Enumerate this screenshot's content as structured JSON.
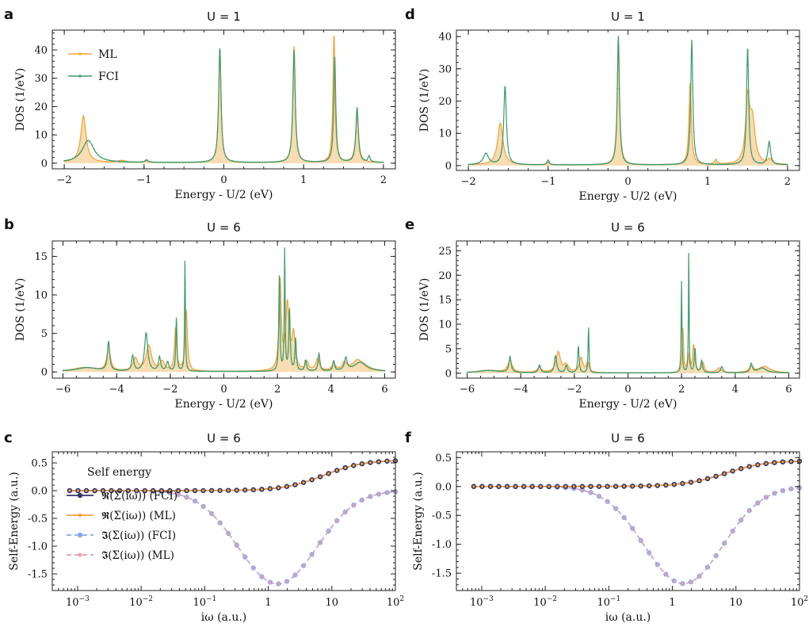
{
  "figure": {
    "legend_title": "Self energy",
    "legend_dos": [
      "ML",
      "FCI"
    ],
    "legend_self": [
      "𝕽(Σ(iω)) (FCI)",
      "𝕽(Σ(iω)) (ML)",
      "𝕴(Σ(iω)) (FCI)",
      "𝕴(Σ(iω)) (ML)"
    ]
  },
  "colors": {
    "ml": "#f3a033",
    "ml_fill": "#f8dcb2",
    "fci": "#3d9a6a",
    "re_fci": "#33336e",
    "im_fci": "#87a8ee",
    "im_ml": "#ee9aa6",
    "axis": "#222222"
  },
  "chart_data": [
    {
      "panel": "a",
      "type": "line",
      "title": "U = 1",
      "xlabel": "Energy - U/2 (eV)",
      "ylabel": "DOS (1/eV)",
      "xlim": [
        -2.15,
        2.15
      ],
      "ylim": [
        -2,
        47
      ],
      "xticks": [
        -2,
        -1,
        0,
        1,
        2
      ],
      "xticklabels": [
        "−2",
        "−1",
        "0",
        "1",
        "2"
      ],
      "yticks": [
        0,
        10,
        20,
        30,
        40
      ],
      "yticklabels": [
        "0",
        "10",
        "20",
        "30",
        "40"
      ],
      "legend": true,
      "series": [
        {
          "name": "ML",
          "peaks": [
            [
              -1.76,
              16.5,
              0.04
            ],
            [
              -1.28,
              0.7,
              0.06
            ],
            [
              -0.97,
              0.5,
              0.03
            ],
            [
              -0.05,
              40,
              0.018
            ],
            [
              0.88,
              41,
              0.018
            ],
            [
              1.38,
              45.5,
              0.015
            ],
            [
              1.67,
              17,
              0.022
            ]
          ],
          "baseline": 0.2
        },
        {
          "name": "FCI",
          "peaks": [
            [
              -1.7,
              7.8,
              0.09
            ],
            [
              -0.97,
              0.9,
              0.02
            ],
            [
              -0.05,
              40.5,
              0.018
            ],
            [
              0.88,
              39.5,
              0.018
            ],
            [
              1.39,
              37.5,
              0.015
            ],
            [
              1.67,
              19.5,
              0.018
            ],
            [
              1.82,
              2.2,
              0.015
            ]
          ],
          "baseline": 0.2
        }
      ]
    },
    {
      "panel": "b",
      "type": "line",
      "title": "U = 6",
      "xlabel": "Energy - U/2 (eV)",
      "ylabel": "DOS (1/eV)",
      "xlim": [
        -6.4,
        6.4
      ],
      "ylim": [
        -0.8,
        17
      ],
      "xticks": [
        -6,
        -4,
        -2,
        0,
        2,
        4,
        6
      ],
      "xticklabels": [
        "−6",
        "−4",
        "−2",
        "0",
        "2",
        "4",
        "6"
      ],
      "yticks": [
        0,
        5,
        10,
        15
      ],
      "yticklabels": [
        "0",
        "5",
        "10",
        "15"
      ],
      "legend": false,
      "series": [
        {
          "name": "ML",
          "peaks": [
            [
              -5.2,
              0.5,
              0.5
            ],
            [
              -4.3,
              3.0,
              0.08
            ],
            [
              -3.3,
              1.6,
              0.1
            ],
            [
              -2.8,
              3.3,
              0.12
            ],
            [
              -2.3,
              1.2,
              0.1
            ],
            [
              -1.8,
              5.5,
              0.05
            ],
            [
              -1.4,
              7.8,
              0.05
            ],
            [
              2.1,
              11.5,
              0.05
            ],
            [
              2.37,
              8.5,
              0.08
            ],
            [
              2.6,
              4.5,
              0.07
            ],
            [
              3.1,
              1.1,
              0.07
            ],
            [
              3.5,
              1.6,
              0.08
            ],
            [
              4.1,
              0.9,
              0.08
            ],
            [
              4.5,
              1.0,
              0.1
            ],
            [
              5.0,
              1.5,
              0.25
            ]
          ],
          "baseline": 0.05
        },
        {
          "name": "FCI",
          "peaks": [
            [
              -5.1,
              0.5,
              0.5
            ],
            [
              -4.3,
              3.8,
              0.05
            ],
            [
              -3.4,
              2.0,
              0.05
            ],
            [
              -2.9,
              5.0,
              0.07
            ],
            [
              -2.4,
              1.8,
              0.05
            ],
            [
              -2.1,
              1.2,
              0.05
            ],
            [
              -1.77,
              7.0,
              0.025
            ],
            [
              -1.45,
              14.8,
              0.018
            ],
            [
              2.07,
              12.5,
              0.025
            ],
            [
              2.27,
              16.2,
              0.018
            ],
            [
              2.45,
              8.0,
              0.03
            ],
            [
              2.68,
              4.2,
              0.03
            ],
            [
              3.05,
              1.4,
              0.04
            ],
            [
              3.55,
              2.3,
              0.04
            ],
            [
              4.1,
              1.3,
              0.04
            ],
            [
              4.55,
              1.6,
              0.06
            ],
            [
              5.1,
              1.2,
              0.3
            ]
          ],
          "baseline": 0.05
        }
      ]
    },
    {
      "panel": "c",
      "type": "line",
      "title": "U = 6",
      "xlabel": "iω (a.u.)",
      "ylabel": "Self-Energy (a.u.)",
      "xscale": "log",
      "xlim": [
        0.0004,
        100
      ],
      "ylim": [
        -1.8,
        0.7
      ],
      "xticks": [
        0.001,
        0.01,
        0.1,
        1,
        10,
        100
      ],
      "xticklabels": [
        [
          "10",
          "−3"
        ],
        [
          "10",
          "−2"
        ],
        [
          "10",
          "−1"
        ],
        [
          "1",
          ""
        ],
        [
          "10",
          ""
        ],
        [
          "10",
          "2"
        ]
      ],
      "yticks": [
        0.5,
        0,
        -0.5,
        -1,
        -1.5
      ],
      "yticklabels": [
        "0.5",
        "0.0",
        "-0.5",
        "-1.0",
        "-1.5"
      ],
      "legend": true,
      "re_params": {
        "amp": 0.58,
        "center": 0.9,
        "width": 0.32
      },
      "im_params": {
        "amp": 1.68,
        "peak": 1.4,
        "decade_width": 0.62
      },
      "sample_points": 40
    },
    {
      "panel": "d",
      "type": "line",
      "title": "U = 1",
      "xlabel": "Energy - U/2 (eV)",
      "ylabel": "DOS (1/eV)",
      "xlim": [
        -2.15,
        2.15
      ],
      "ylim": [
        -1.5,
        42
      ],
      "xticks": [
        -2,
        -1,
        0,
        1,
        2
      ],
      "xticklabels": [
        "−2",
        "−1",
        "0",
        "1",
        "2"
      ],
      "yticks": [
        0,
        10,
        20,
        30,
        40
      ],
      "yticklabels": [
        "0",
        "10",
        "20",
        "30",
        "40"
      ],
      "legend": false,
      "series": [
        {
          "name": "ML",
          "peaks": [
            [
              -1.6,
              13,
              0.04
            ],
            [
              -1.0,
              0.7,
              0.02
            ],
            [
              -0.12,
              37,
              0.018
            ],
            [
              0.78,
              25.5,
              0.018
            ],
            [
              1.1,
              1.5,
              0.02
            ],
            [
              1.5,
              19,
              0.03
            ],
            [
              1.56,
              13,
              0.04
            ],
            [
              1.78,
              1.5,
              0.03
            ]
          ],
          "baseline": 0.2
        },
        {
          "name": "FCI",
          "peaks": [
            [
              -1.78,
              3.5,
              0.04
            ],
            [
              -1.54,
              24.5,
              0.02
            ],
            [
              -1.0,
              1.5,
              0.015
            ],
            [
              -0.12,
              40,
              0.016
            ],
            [
              0.8,
              38.5,
              0.016
            ],
            [
              1.5,
              36.5,
              0.016
            ],
            [
              1.77,
              7.2,
              0.02
            ]
          ],
          "baseline": 0.2
        }
      ]
    },
    {
      "panel": "e",
      "type": "line",
      "title": "U = 6",
      "xlabel": "Energy - U/2 (eV)",
      "ylabel": "DOS (1/eV)",
      "xlim": [
        -6.4,
        6.4
      ],
      "ylim": [
        -1,
        27
      ],
      "xticks": [
        -6,
        -4,
        -2,
        0,
        2,
        4,
        6
      ],
      "xticklabels": [
        "−6",
        "−4",
        "−2",
        "0",
        "2",
        "4",
        "6"
      ],
      "yticks": [
        0,
        5,
        10,
        15,
        20,
        25
      ],
      "yticklabels": [
        "0",
        "5",
        "10",
        "15",
        "20",
        "25"
      ],
      "legend": false,
      "series": [
        {
          "name": "ML",
          "peaks": [
            [
              -5.2,
              0.5,
              0.5
            ],
            [
              -4.4,
              2.4,
              0.1
            ],
            [
              -3.3,
              1.0,
              0.1
            ],
            [
              -2.6,
              4.2,
              0.1
            ],
            [
              -2.3,
              1.5,
              0.1
            ],
            [
              -1.75,
              3.0,
              0.08
            ],
            [
              -1.5,
              2.0,
              0.06
            ],
            [
              2.05,
              9.0,
              0.03
            ],
            [
              2.25,
              3.5,
              0.04
            ],
            [
              2.45,
              5.5,
              0.05
            ],
            [
              2.8,
              2.0,
              0.06
            ],
            [
              3.4,
              1.0,
              0.1
            ],
            [
              4.6,
              1.2,
              0.1
            ],
            [
              5.1,
              1.3,
              0.25
            ]
          ],
          "baseline": 0.05
        },
        {
          "name": "FCI",
          "peaks": [
            [
              -5.2,
              0.5,
              0.5
            ],
            [
              -4.4,
              3.2,
              0.05
            ],
            [
              -3.3,
              1.6,
              0.05
            ],
            [
              -2.7,
              3.5,
              0.05
            ],
            [
              -2.3,
              1.5,
              0.05
            ],
            [
              -1.85,
              5.5,
              0.03
            ],
            [
              -1.47,
              9.5,
              0.02
            ],
            [
              2.0,
              18.5,
              0.018
            ],
            [
              2.27,
              25.5,
              0.015
            ],
            [
              2.5,
              5.0,
              0.03
            ],
            [
              2.75,
              2.5,
              0.04
            ],
            [
              3.5,
              1.3,
              0.05
            ],
            [
              4.6,
              1.8,
              0.05
            ],
            [
              5.0,
              1.0,
              0.2
            ]
          ],
          "baseline": 0.05
        }
      ]
    },
    {
      "panel": "f",
      "type": "line",
      "title": "U = 6",
      "xlabel": "iω (a.u.)",
      "ylabel": "Self-Energy (a.u.)",
      "xscale": "log",
      "xlim": [
        0.0004,
        100
      ],
      "ylim": [
        -1.8,
        0.6
      ],
      "xticks": [
        0.001,
        0.01,
        0.1,
        1,
        10,
        100
      ],
      "xticklabels": [
        [
          "10",
          "−3"
        ],
        [
          "10",
          "−2"
        ],
        [
          "10",
          "−1"
        ],
        [
          "1",
          ""
        ],
        [
          "10",
          ""
        ],
        [
          "10",
          "2"
        ]
      ],
      "yticks": [
        0.5,
        0,
        -0.5,
        -1,
        -1.5
      ],
      "yticklabels": [
        "0.5",
        "0.0",
        "-0.5",
        "-1.0",
        "-1.5"
      ],
      "legend": false,
      "re_params": {
        "amp": 0.47,
        "center": 0.85,
        "width": 0.33
      },
      "im_params": {
        "amp": 1.68,
        "peak": 1.5,
        "decade_width": 0.62
      },
      "sample_points": 40
    }
  ]
}
